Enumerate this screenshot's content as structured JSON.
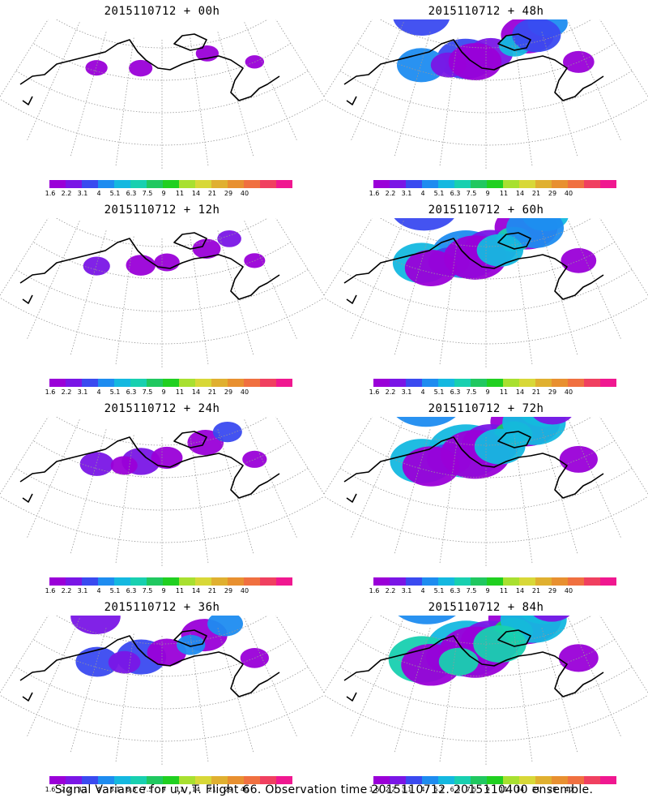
{
  "panels": [
    {
      "title": "2015110712 + 00h",
      "coverage": 0.1
    },
    {
      "title": "2015110712 + 48h",
      "coverage": 0.55
    },
    {
      "title": "2015110712 + 12h",
      "coverage": 0.18
    },
    {
      "title": "2015110712 + 60h",
      "coverage": 0.7
    },
    {
      "title": "2015110712 + 24h",
      "coverage": 0.3
    },
    {
      "title": "2015110712 + 72h",
      "coverage": 0.8
    },
    {
      "title": "2015110712 + 36h",
      "coverage": 0.45
    },
    {
      "title": "2015110712 + 84h",
      "coverage": 0.85
    }
  ],
  "colorbar": {
    "labels": [
      "1.6",
      "2.2",
      "3.1",
      "4",
      "5.1",
      "6.3",
      "7.5",
      "9",
      "11",
      "14",
      "21",
      "29",
      "40"
    ],
    "colors": [
      "#9a00d8",
      "#7a16e6",
      "#3a4af0",
      "#1e8cf0",
      "#14b8e0",
      "#18d0b0",
      "#20c860",
      "#20d020",
      "#a8e030",
      "#d8d838",
      "#e0b030",
      "#e89030",
      "#f07040",
      "#f04060",
      "#f01890"
    ]
  },
  "footer": "Signal Variance for u,v,T. Flight 66. Observation time 2015110712. 2015110400 ensemble."
}
